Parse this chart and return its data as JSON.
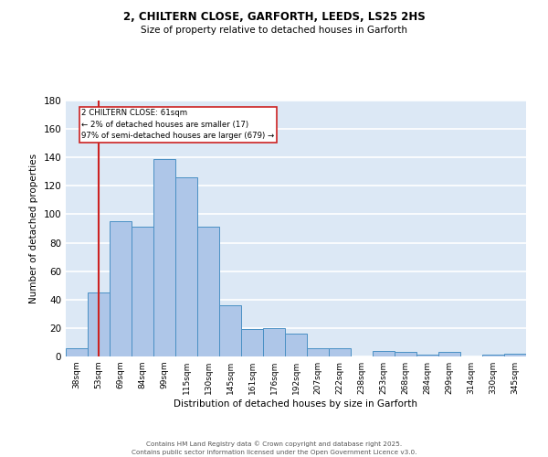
{
  "title1": "2, CHILTERN CLOSE, GARFORTH, LEEDS, LS25 2HS",
  "title2": "Size of property relative to detached houses in Garforth",
  "xlabel": "Distribution of detached houses by size in Garforth",
  "ylabel": "Number of detached properties",
  "bar_labels": [
    "38sqm",
    "53sqm",
    "69sqm",
    "84sqm",
    "99sqm",
    "115sqm",
    "130sqm",
    "145sqm",
    "161sqm",
    "176sqm",
    "192sqm",
    "207sqm",
    "222sqm",
    "238sqm",
    "253sqm",
    "268sqm",
    "284sqm",
    "299sqm",
    "314sqm",
    "330sqm",
    "345sqm"
  ],
  "bar_values": [
    6,
    45,
    95,
    91,
    139,
    126,
    91,
    36,
    19,
    20,
    16,
    6,
    6,
    0,
    4,
    3,
    1,
    3,
    0,
    1,
    2
  ],
  "bar_color": "#aec6e8",
  "bar_edge_color": "#4a90c4",
  "background_color": "#dce8f5",
  "grid_color": "#ffffff",
  "annotation_text": "2 CHILTERN CLOSE: 61sqm\n← 2% of detached houses are smaller (17)\n97% of semi-detached houses are larger (679) →",
  "redline_x": 1,
  "ylim": [
    0,
    180
  ],
  "yticks": [
    0,
    20,
    40,
    60,
    80,
    100,
    120,
    140,
    160,
    180
  ],
  "footer1": "Contains HM Land Registry data © Crown copyright and database right 2025.",
  "footer2": "Contains public sector information licensed under the Open Government Licence v3.0."
}
